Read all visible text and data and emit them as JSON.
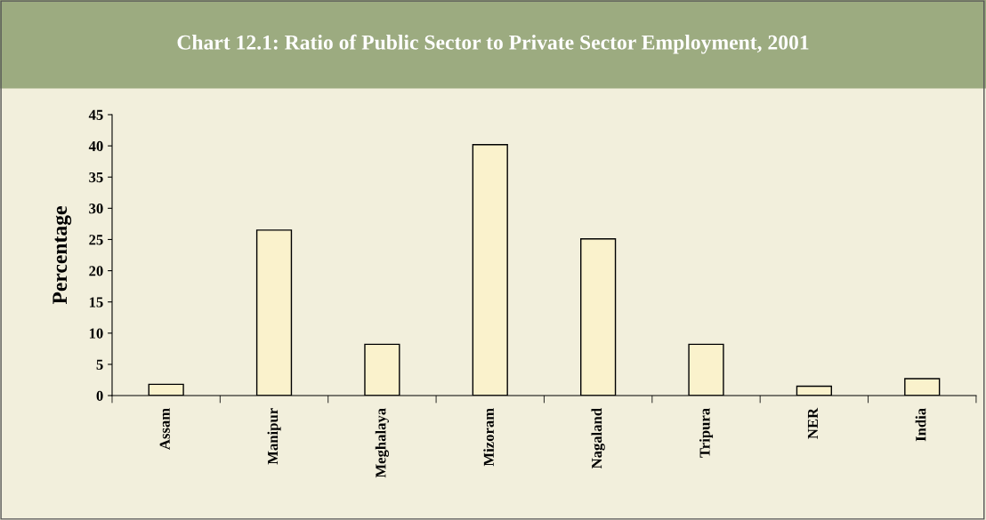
{
  "chart_data": {
    "type": "bar",
    "title": "Chart 12.1: Ratio of Public Sector to Private Sector Employment, 2001",
    "ylabel": "Percentage",
    "categories": [
      "Assam",
      "Manipur",
      "Meghalaya",
      "Mizoram",
      "Nagaland",
      "Tripura",
      "NER",
      "India"
    ],
    "values": [
      1.8,
      26.5,
      8.2,
      40.2,
      25.1,
      8.2,
      1.5,
      2.7
    ],
    "color": "#faf2cc",
    "ylim": [
      0,
      45
    ],
    "yticks": [
      0,
      5,
      10,
      15,
      20,
      25,
      30,
      35,
      40,
      45
    ],
    "grid": false,
    "legend": false
  }
}
